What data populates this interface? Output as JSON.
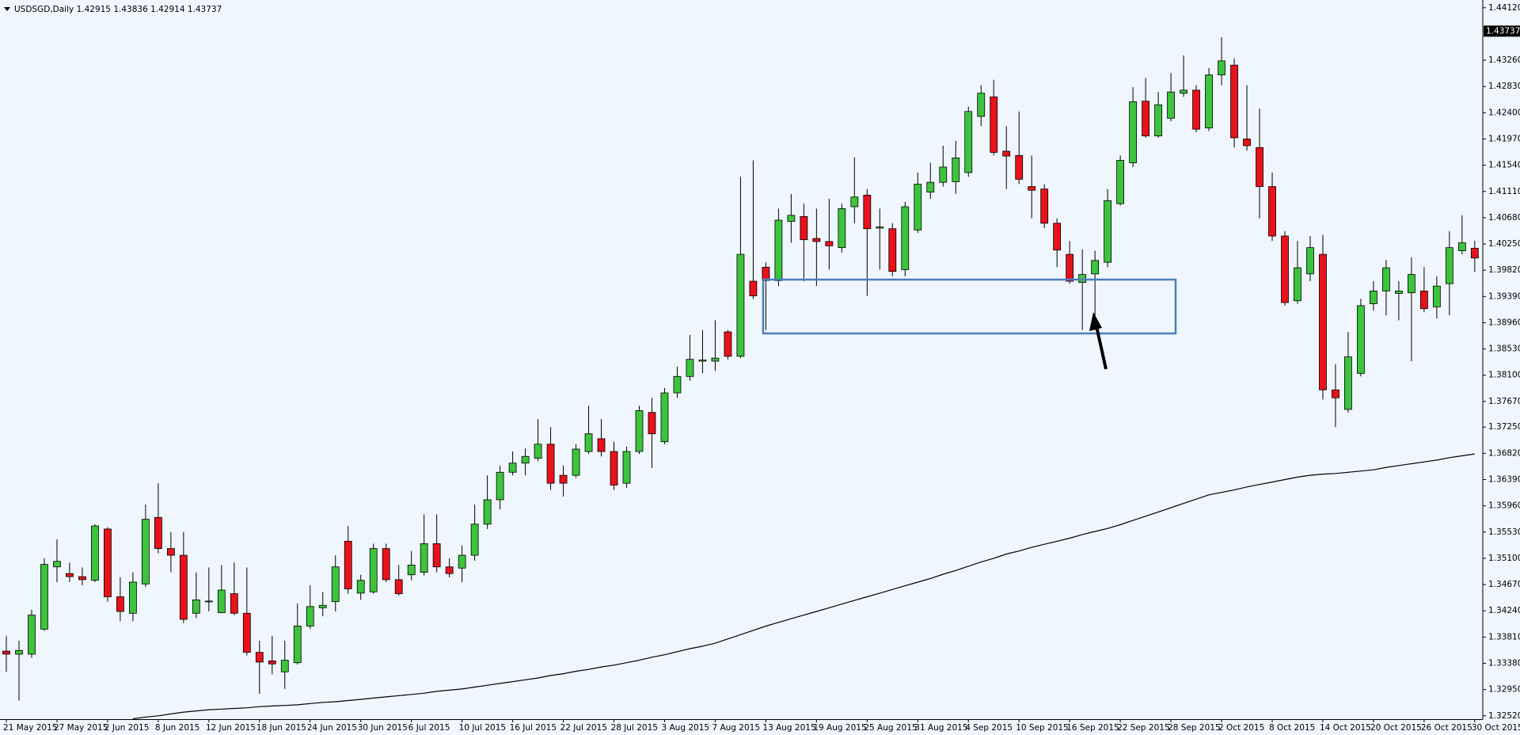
{
  "chart_data": {
    "type": "candlestick",
    "title": "USDSGD,Daily  1.42915 1.43836 1.42914 1.43737",
    "last_price": 1.43737,
    "up_color": "#3cc43c",
    "down_color": "#e8121b",
    "ma_color": "#000000",
    "grid": false,
    "ylim": [
      1.32465,
      1.44247
    ],
    "yticks": [
      {
        "value": 1.4412,
        "label": "1.44120"
      },
      {
        "value": 1.4326,
        "label": "1.43260"
      },
      {
        "value": 1.4283,
        "label": "1.42830"
      },
      {
        "value": 1.424,
        "label": "1.42400"
      },
      {
        "value": 1.4197,
        "label": "1.41970"
      },
      {
        "value": 1.4154,
        "label": "1.41540"
      },
      {
        "value": 1.4111,
        "label": "1.41110"
      },
      {
        "value": 1.4068,
        "label": "1.40680"
      },
      {
        "value": 1.4025,
        "label": "1.40250"
      },
      {
        "value": 1.3982,
        "label": "1.39820"
      },
      {
        "value": 1.3939,
        "label": "1.39390"
      },
      {
        "value": 1.3896,
        "label": "1.38960"
      },
      {
        "value": 1.3853,
        "label": "1.38530"
      },
      {
        "value": 1.381,
        "label": "1.38100"
      },
      {
        "value": 1.3767,
        "label": "1.37670"
      },
      {
        "value": 1.3725,
        "label": "1.37250"
      },
      {
        "value": 1.3682,
        "label": "1.36820"
      },
      {
        "value": 1.3639,
        "label": "1.36390"
      },
      {
        "value": 1.3596,
        "label": "1.35960"
      },
      {
        "value": 1.3553,
        "label": "1.35530"
      },
      {
        "value": 1.351,
        "label": "1.35100"
      },
      {
        "value": 1.3467,
        "label": "1.34670"
      },
      {
        "value": 1.3424,
        "label": "1.34240"
      },
      {
        "value": 1.3381,
        "label": "1.33810"
      },
      {
        "value": 1.3338,
        "label": "1.33380"
      },
      {
        "value": 1.3295,
        "label": "1.32950"
      },
      {
        "value": 1.3252,
        "label": "1.32520"
      }
    ],
    "categories": [
      "21 May 2015",
      null,
      null,
      null,
      "27 May 2015",
      null,
      null,
      null,
      "2 Jun 2015",
      null,
      null,
      null,
      "8 Jun 2015",
      null,
      null,
      null,
      "12 Jun 2015",
      null,
      null,
      null,
      "18 Jun 2015",
      null,
      null,
      null,
      "24 Jun 2015",
      null,
      null,
      null,
      "30 Jun 2015",
      null,
      null,
      null,
      "6 Jul 2015",
      null,
      null,
      null,
      "10 Jul 2015",
      null,
      null,
      null,
      "16 Jul 2015",
      null,
      null,
      null,
      "22 Jul 2015",
      null,
      null,
      null,
      "28 Jul 2015",
      null,
      null,
      null,
      "3 Aug 2015",
      null,
      null,
      null,
      "7 Aug 2015",
      null,
      null,
      null,
      "13 Aug 2015",
      null,
      null,
      null,
      "19 Aug 2015",
      null,
      null,
      null,
      "25 Aug 2015",
      null,
      null,
      null,
      "31 Aug 2015",
      null,
      null,
      null,
      "4 Sep 2015",
      null,
      null,
      null,
      "10 Sep 2015",
      null,
      null,
      null,
      "16 Sep 2015",
      null,
      null,
      null,
      "22 Sep 2015",
      null,
      null,
      null,
      "28 Sep 2015",
      null,
      null,
      null,
      "2 Oct 2015",
      null,
      null,
      null,
      "8 Oct 2015",
      null,
      null,
      null,
      "14 Oct 2015",
      null,
      null,
      null,
      "20 Oct 2015",
      null,
      null,
      null,
      "26 Oct 2015",
      null,
      null,
      null,
      "30 Oct 2015"
    ],
    "open": [
      1.3358,
      1.3353,
      1.3353,
      1.3394,
      1.3496,
      1.3485,
      1.348,
      1.3474,
      1.3558,
      1.3447,
      1.342,
      1.3468,
      1.3577,
      1.3526,
      1.3515,
      1.342,
      1.3439,
      1.3421,
      1.3452,
      1.342,
      1.3356,
      1.3342,
      1.3324,
      1.3339,
      1.3399,
      1.3429,
      1.3439,
      1.3538,
      1.3453,
      1.3455,
      1.3526,
      1.3475,
      1.3483,
      1.3487,
      1.3534,
      1.3496,
      1.3494,
      1.3515,
      1.3566,
      1.3606,
      1.3651,
      1.3666,
      1.3674,
      1.3697,
      1.3646,
      1.3646,
      1.3685,
      1.3706,
      1.3685,
      1.3633,
      1.3685,
      1.3749,
      1.3701,
      1.3781,
      1.3808,
      1.3833,
      1.3833,
      1.3881,
      1.3841,
      1.3964,
      1.3987,
      1.3965,
      1.4062,
      1.407,
      1.4034,
      1.4029,
      1.4019,
      1.4086,
      1.4105,
      1.4051,
      1.405,
      1.3983,
      1.4048,
      1.411,
      1.4126,
      1.4127,
      1.4142,
      1.4234,
      1.4266,
      1.4177,
      1.417,
      1.4119,
      1.4115,
      1.4059,
      1.4008,
      1.3962,
      1.3976,
      1.3995,
      1.4091,
      1.4158,
      1.4259,
      1.4202,
      1.4231,
      1.4272,
      1.4277,
      1.4215,
      1.4302,
      1.4318,
      1.4197,
      1.4183,
      1.4119,
      1.4038,
      1.3932,
      1.3976,
      1.4008,
      1.3786,
      1.3754,
      1.3813,
      1.3927,
      1.3948,
      1.3944,
      1.3945,
      1.3948,
      1.3922,
      1.396,
      1.4014,
      1.4018
    ],
    "high": [
      1.3383,
      1.3375,
      1.3426,
      1.351,
      1.3541,
      1.3503,
      1.3495,
      1.3566,
      1.3561,
      1.3479,
      1.3487,
      1.3598,
      1.3633,
      1.3553,
      1.3553,
      1.3487,
      1.3495,
      1.3499,
      1.3503,
      1.3495,
      1.3375,
      1.3383,
      1.3375,
      1.3436,
      1.3466,
      1.3455,
      1.3515,
      1.3563,
      1.3483,
      1.3534,
      1.3534,
      1.3499,
      1.3522,
      1.3582,
      1.3582,
      1.351,
      1.3531,
      1.3598,
      1.3646,
      1.3662,
      1.3685,
      1.369,
      1.3738,
      1.3725,
      1.3662,
      1.3697,
      1.376,
      1.3738,
      1.3701,
      1.3693,
      1.376,
      1.3773,
      1.3789,
      1.3824,
      1.3876,
      1.3884,
      1.39,
      1.3884,
      1.4135,
      1.4162,
      1.3995,
      1.4083,
      1.4107,
      1.4091,
      1.4083,
      1.4099,
      1.4091,
      1.4167,
      1.4115,
      1.4083,
      1.4059,
      1.4094,
      1.4142,
      1.4158,
      1.4186,
      1.4194,
      1.425,
      1.4285,
      1.4294,
      1.4218,
      1.4242,
      1.417,
      1.4123,
      1.4067,
      1.403,
      1.4016,
      1.4014,
      1.4115,
      1.417,
      1.4282,
      1.4297,
      1.4274,
      1.4305,
      1.4334,
      1.4285,
      1.4313,
      1.4364,
      1.4329,
      1.4285,
      1.4247,
      1.4142,
      1.4046,
      1.403,
      1.4038,
      1.404,
      1.3828,
      1.3881,
      1.3935,
      1.3964,
      1.3999,
      1.3964,
      1.4003,
      1.3987,
      1.3972,
      1.4046,
      1.4072,
      1.403
    ],
    "low": [
      1.3324,
      1.3277,
      1.3347,
      1.3391,
      1.3471,
      1.3471,
      1.3466,
      1.3471,
      1.3439,
      1.3407,
      1.3407,
      1.3463,
      1.3518,
      1.3487,
      1.3404,
      1.3412,
      1.3423,
      1.342,
      1.3417,
      1.3351,
      1.3288,
      1.332,
      1.3296,
      1.3336,
      1.3394,
      1.3415,
      1.3423,
      1.3452,
      1.3442,
      1.3452,
      1.3471,
      1.3449,
      1.3474,
      1.3482,
      1.3487,
      1.3479,
      1.3471,
      1.3506,
      1.3558,
      1.359,
      1.3646,
      1.3646,
      1.3669,
      1.3622,
      1.3611,
      1.3642,
      1.3681,
      1.3677,
      1.3622,
      1.3625,
      1.3681,
      1.3658,
      1.3697,
      1.3773,
      1.3801,
      1.3813,
      1.3817,
      1.3836,
      1.3838,
      1.3935,
      1.3884,
      1.3956,
      1.4027,
      1.3964,
      1.3956,
      1.3983,
      1.4011,
      1.4059,
      1.394,
      1.3983,
      1.3972,
      1.3972,
      1.4043,
      1.4099,
      1.4119,
      1.4107,
      1.4135,
      1.4218,
      1.417,
      1.4115,
      1.4123,
      1.4067,
      1.4051,
      1.3987,
      1.396,
      1.3884,
      1.3884,
      1.3987,
      1.4088,
      1.4151,
      1.4199,
      1.4199,
      1.4226,
      1.4266,
      1.4208,
      1.421,
      1.4285,
      1.4183,
      1.4178,
      1.4067,
      1.403,
      1.3924,
      1.3927,
      1.3964,
      1.377,
      1.3725,
      1.3749,
      1.3808,
      1.3916,
      1.3908,
      1.39,
      1.3833,
      1.3913,
      1.3903,
      1.3908,
      1.4008,
      1.3979
    ],
    "close": [
      1.3353,
      1.3359,
      1.3417,
      1.35,
      1.3505,
      1.348,
      1.3475,
      1.3563,
      1.3447,
      1.3423,
      1.3471,
      1.3574,
      1.3526,
      1.3515,
      1.341,
      1.3442,
      1.344,
      1.3458,
      1.342,
      1.3356,
      1.334,
      1.3337,
      1.3343,
      1.3399,
      1.3431,
      1.3433,
      1.3496,
      1.346,
      1.3474,
      1.3526,
      1.3475,
      1.3452,
      1.3499,
      1.3534,
      1.3496,
      1.3485,
      1.3515,
      1.3566,
      1.3606,
      1.3651,
      1.3666,
      1.3677,
      1.3697,
      1.3633,
      1.3633,
      1.3689,
      1.3714,
      1.3685,
      1.363,
      1.3685,
      1.3752,
      1.3714,
      1.3781,
      1.3808,
      1.3836,
      1.3835,
      1.3838,
      1.3841,
      1.4008,
      1.394,
      1.3965,
      1.4064,
      1.4072,
      1.4032,
      1.4029,
      1.4022,
      1.4083,
      1.4102,
      1.405,
      1.4053,
      1.398,
      1.4086,
      1.4123,
      1.4126,
      1.4151,
      1.4166,
      1.4242,
      1.4272,
      1.4175,
      1.4169,
      1.4131,
      1.4113,
      1.4059,
      1.4015,
      1.3964,
      1.3975,
      1.3998,
      1.4096,
      1.4162,
      1.4258,
      1.4202,
      1.4253,
      1.4274,
      1.4277,
      1.4213,
      1.4302,
      1.4325,
      1.4199,
      1.4186,
      1.4119,
      1.4038,
      1.3929,
      1.3986,
      1.4019,
      1.3786,
      1.3773,
      1.384,
      1.3924,
      1.3948,
      1.3986,
      1.3948,
      1.3975,
      1.3919,
      1.3956,
      1.4019,
      1.4027,
      1.4002
    ],
    "ma": [
      null,
      null,
      null,
      null,
      null,
      null,
      null,
      null,
      null,
      null,
      1.3247,
      1.325,
      1.3252,
      1.3255,
      1.3258,
      1.326,
      1.3262,
      1.3263,
      1.3264,
      1.3265,
      1.3267,
      1.3268,
      1.3269,
      1.327,
      1.3272,
      1.3274,
      1.3275,
      1.3277,
      1.3279,
      1.3281,
      1.3283,
      1.3285,
      1.3287,
      1.3289,
      1.3292,
      1.3294,
      1.3296,
      1.3299,
      1.3302,
      1.3305,
      1.3308,
      1.3311,
      1.3314,
      1.3318,
      1.3321,
      1.3325,
      1.3328,
      1.3332,
      1.3335,
      1.3339,
      1.3343,
      1.3348,
      1.3352,
      1.3357,
      1.3362,
      1.3366,
      1.3371,
      1.3378,
      1.3385,
      1.3392,
      1.3399,
      1.3405,
      1.3411,
      1.3417,
      1.3423,
      1.3429,
      1.3435,
      1.3441,
      1.3447,
      1.3453,
      1.3459,
      1.3465,
      1.3471,
      1.3477,
      1.3484,
      1.349,
      1.3497,
      1.3504,
      1.351,
      1.3517,
      1.3522,
      1.3528,
      1.3533,
      1.3538,
      1.3543,
      1.3549,
      1.3554,
      1.3559,
      1.3565,
      1.3572,
      1.3579,
      1.3586,
      1.3593,
      1.36,
      1.3607,
      1.3614,
      1.3618,
      1.3622,
      1.3627,
      1.3631,
      1.3635,
      1.3639,
      1.3643,
      1.3646,
      1.3648,
      1.3649,
      1.3651,
      1.3653,
      1.3655,
      1.3659,
      1.3662,
      1.3665,
      1.3668,
      1.3671,
      1.3675,
      1.3678,
      1.3681
    ]
  }
}
